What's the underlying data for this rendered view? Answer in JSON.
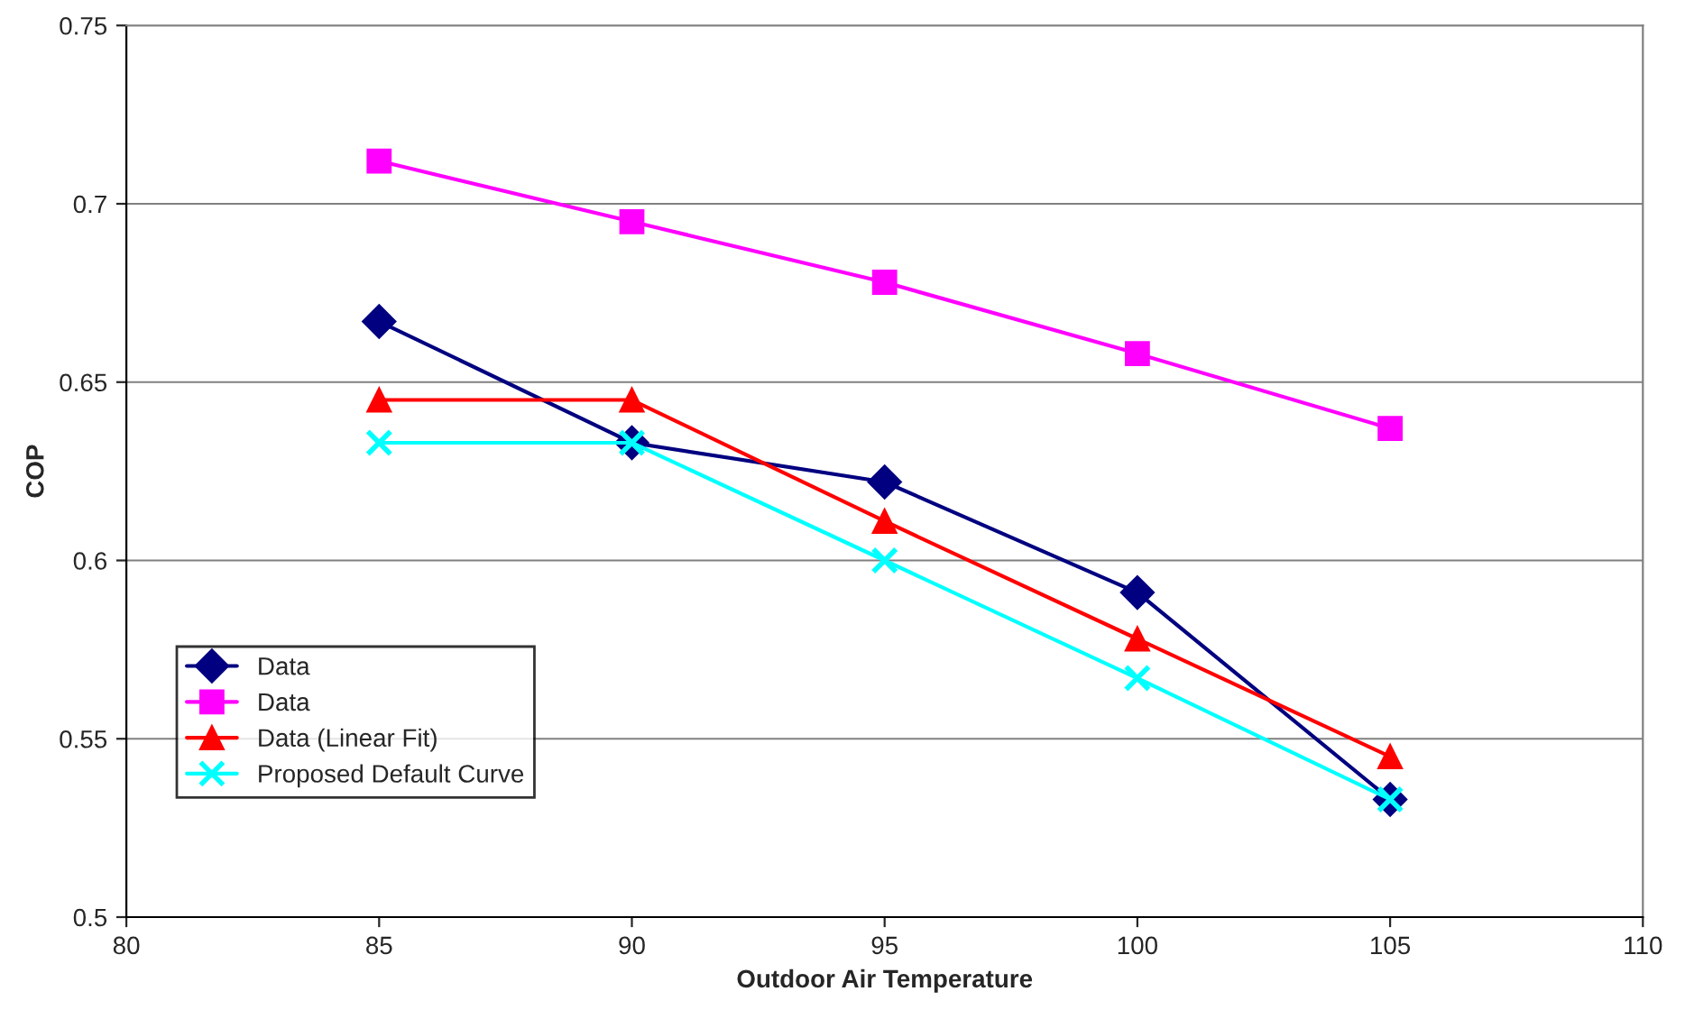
{
  "chart_data": {
    "type": "line",
    "xlabel": "Outdoor Air Temperature",
    "ylabel": "COP",
    "x": [
      85,
      90,
      95,
      100,
      105
    ],
    "series": [
      {
        "name": "Data",
        "color": "#000080",
        "marker": "diamond",
        "values": [
          0.667,
          0.633,
          0.622,
          0.591,
          0.533
        ]
      },
      {
        "name": "Data",
        "color": "#ff00ff",
        "marker": "square",
        "values": [
          0.712,
          0.695,
          0.678,
          0.658,
          0.637
        ]
      },
      {
        "name": "Data (Linear Fit)",
        "color": "#ff0000",
        "marker": "triangle",
        "values": [
          0.645,
          0.645,
          0.611,
          0.578,
          0.545
        ]
      },
      {
        "name": "Proposed Default Curve",
        "color": "#00ffff",
        "marker": "cross",
        "values": [
          0.633,
          0.633,
          0.6,
          0.567,
          0.533
        ]
      }
    ],
    "xlim": [
      80,
      110
    ],
    "xticks": [
      80,
      85,
      90,
      95,
      100,
      105,
      110
    ],
    "ylim": [
      0.5,
      0.75
    ],
    "yticks": [
      0.5,
      0.55,
      0.6,
      0.65,
      0.7,
      0.75
    ],
    "grid": "y",
    "legend": "bottom left",
    "line_style": "solid"
  }
}
